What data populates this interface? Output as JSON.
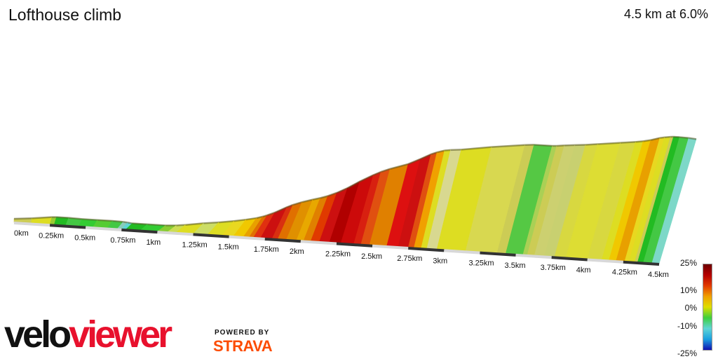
{
  "header": {
    "title": "Lofthouse climb",
    "summary": "4.5 km at 6.0%"
  },
  "legend": {
    "labels": [
      "25%",
      "10%",
      "0%",
      "-10%",
      "-25%"
    ],
    "gradient_stops": [
      {
        "pct": 25,
        "color": "#6e0000"
      },
      {
        "pct": 20,
        "color": "#b50000"
      },
      {
        "pct": 15,
        "color": "#e23a00"
      },
      {
        "pct": 10,
        "color": "#f0a000"
      },
      {
        "pct": 5,
        "color": "#dede00"
      },
      {
        "pct": 0,
        "color": "#3ecf3e"
      },
      {
        "pct": -5,
        "color": "#5fd5d5"
      },
      {
        "pct": -10,
        "color": "#1aa0e0"
      },
      {
        "pct": -25,
        "color": "#1010b0"
      }
    ]
  },
  "branding": {
    "logo_velo": "velo",
    "logo_viewer": "viewer",
    "powered_by": "POWERED BY",
    "strava": "STRAVA"
  },
  "chart_data": {
    "type": "area",
    "title": "Lofthouse climb",
    "xlabel": "",
    "ylabel": "",
    "x_unit": "km",
    "xlim": [
      0,
      4.5
    ],
    "tick_labels": [
      "0km",
      "0.25km",
      "0.5km",
      "0.75km",
      "1km",
      "1.25km",
      "1.5km",
      "1.75km",
      "2km",
      "2.25km",
      "2.5km",
      "2.75km",
      "3km",
      "3.25km",
      "3.5km",
      "3.75km",
      "4km",
      "4.25km",
      "4.5km"
    ],
    "profile": [
      {
        "km": 0.0,
        "gradient": 3,
        "color": "#cccc55"
      },
      {
        "km": 0.12,
        "gradient": 4,
        "color": "#dddd22"
      },
      {
        "km": 0.25,
        "gradient": 2,
        "color": "#99cc33"
      },
      {
        "km": 0.28,
        "gradient": 0,
        "color": "#22bb22"
      },
      {
        "km": 0.36,
        "gradient": -1,
        "color": "#44c844"
      },
      {
        "km": 0.45,
        "gradient": 0,
        "color": "#33cc33"
      },
      {
        "km": 0.55,
        "gradient": 0,
        "color": "#55cc33"
      },
      {
        "km": 0.65,
        "gradient": -1,
        "color": "#44c844"
      },
      {
        "km": 0.72,
        "gradient": -3,
        "color": "#88ccbb"
      },
      {
        "km": 0.75,
        "gradient": -4,
        "color": "#5fd5d5"
      },
      {
        "km": 0.78,
        "gradient": 0,
        "color": "#22bb22"
      },
      {
        "km": 0.88,
        "gradient": 0,
        "color": "#33cc33"
      },
      {
        "km": 1.0,
        "gradient": 2,
        "color": "#88cc33"
      },
      {
        "km": 1.07,
        "gradient": 4,
        "color": "#ccdd55"
      },
      {
        "km": 1.13,
        "gradient": 5,
        "color": "#dddd22"
      },
      {
        "km": 1.25,
        "gradient": 4,
        "color": "#ccdd66"
      },
      {
        "km": 1.35,
        "gradient": 5,
        "color": "#dddd22"
      },
      {
        "km": 1.45,
        "gradient": 6,
        "color": "#e8d820"
      },
      {
        "km": 1.53,
        "gradient": 7,
        "color": "#f0c800"
      },
      {
        "km": 1.6,
        "gradient": 10,
        "color": "#e8a000"
      },
      {
        "km": 1.64,
        "gradient": 12,
        "color": "#e07000"
      },
      {
        "km": 1.67,
        "gradient": 14,
        "color": "#e03010"
      },
      {
        "km": 1.72,
        "gradient": 17,
        "color": "#cc1010"
      },
      {
        "km": 1.8,
        "gradient": 15,
        "color": "#d93010"
      },
      {
        "km": 1.84,
        "gradient": 12,
        "color": "#e07000"
      },
      {
        "km": 1.9,
        "gradient": 10,
        "color": "#e09000"
      },
      {
        "km": 1.97,
        "gradient": 9,
        "color": "#e8a800"
      },
      {
        "km": 2.02,
        "gradient": 11,
        "color": "#e08000"
      },
      {
        "km": 2.07,
        "gradient": 14,
        "color": "#e03a00"
      },
      {
        "km": 2.13,
        "gradient": 17,
        "color": "#cc1010"
      },
      {
        "km": 2.2,
        "gradient": 20,
        "color": "#b00000"
      },
      {
        "km": 2.28,
        "gradient": 18,
        "color": "#cc0a0a"
      },
      {
        "km": 2.37,
        "gradient": 16,
        "color": "#d82010"
      },
      {
        "km": 2.42,
        "gradient": 13,
        "color": "#e05010"
      },
      {
        "km": 2.48,
        "gradient": 11,
        "color": "#e08000"
      },
      {
        "km": 2.6,
        "gradient": 16,
        "color": "#dd1010"
      },
      {
        "km": 2.68,
        "gradient": 17,
        "color": "#cc1010"
      },
      {
        "km": 2.75,
        "gradient": 13,
        "color": "#e05010"
      },
      {
        "km": 2.79,
        "gradient": 10,
        "color": "#f0a000"
      },
      {
        "km": 2.84,
        "gradient": 5,
        "color": "#dddd22"
      },
      {
        "km": 2.88,
        "gradient": 3,
        "color": "#d8d890"
      },
      {
        "km": 2.95,
        "gradient": 5,
        "color": "#dddd22"
      },
      {
        "km": 3.15,
        "gradient": 4,
        "color": "#d8d850"
      },
      {
        "km": 3.37,
        "gradient": 3,
        "color": "#cccc55"
      },
      {
        "km": 3.43,
        "gradient": 0,
        "color": "#55c844"
      },
      {
        "km": 3.55,
        "gradient": 2,
        "color": "#aad055"
      },
      {
        "km": 3.58,
        "gradient": 4,
        "color": "#cccc55"
      },
      {
        "km": 3.63,
        "gradient": 3,
        "color": "#ccd070"
      },
      {
        "km": 3.7,
        "gradient": 3,
        "color": "#c8d070"
      },
      {
        "km": 3.77,
        "gradient": 4,
        "color": "#d8d840"
      },
      {
        "km": 3.85,
        "gradient": 4,
        "color": "#dddd33"
      },
      {
        "km": 4.0,
        "gradient": 4,
        "color": "#d8d840"
      },
      {
        "km": 4.1,
        "gradient": 5,
        "color": "#dddd22"
      },
      {
        "km": 4.15,
        "gradient": 7,
        "color": "#f0c800"
      },
      {
        "km": 4.2,
        "gradient": 10,
        "color": "#e8a000"
      },
      {
        "km": 4.26,
        "gradient": 6,
        "color": "#e8d820"
      },
      {
        "km": 4.29,
        "gradient": 5,
        "color": "#dddd22"
      },
      {
        "km": 4.33,
        "gradient": 3,
        "color": "#cccc55"
      },
      {
        "km": 4.35,
        "gradient": 0,
        "color": "#22bb22"
      },
      {
        "km": 4.39,
        "gradient": -1,
        "color": "#44c844"
      },
      {
        "km": 4.45,
        "gradient": -3,
        "color": "#7dd8c8"
      }
    ]
  }
}
